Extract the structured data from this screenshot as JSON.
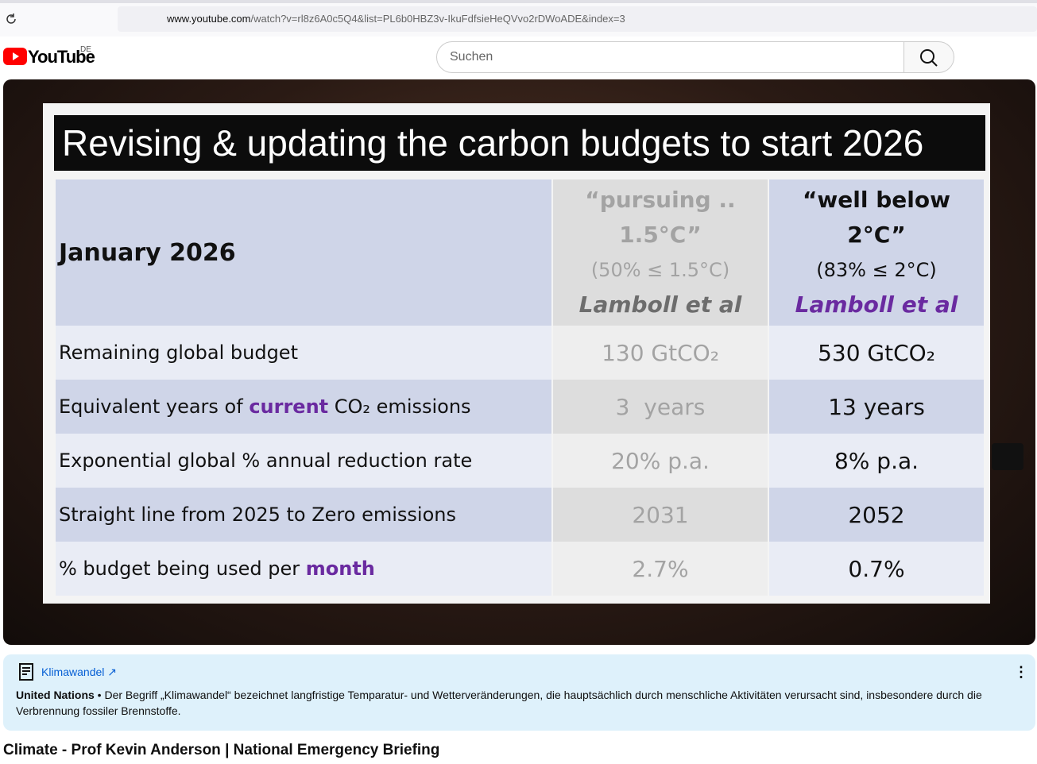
{
  "browser": {
    "url": "www.youtube.com/watch?v=rl8z6A0c5Q4&list=PL6b0HBZ3v-IkuFdfsieHeQVvo2rDWoADE&index=3"
  },
  "header": {
    "logo": "YouTube",
    "region": "DE",
    "search_placeholder": "Suchen"
  },
  "slide": {
    "title": "Revising & updating the carbon budgets to start 2026",
    "table": {
      "header": {
        "label": "January 2026",
        "columns": [
          {
            "lines": [
              "“pursuing ..",
              "1.5°C”",
              "(50% ≤ 1.5°C)",
              "Lamboll et al"
            ]
          },
          {
            "lines": [
              "“well below 2°C”",
              "(83% ≤ 2°C)",
              "Lamboll et al"
            ]
          }
        ]
      },
      "rows": [
        {
          "label": [
            "Remaining global budget"
          ],
          "highlight": [],
          "values": [
            "130 GtCO₂",
            "530 GtCO₂"
          ]
        },
        {
          "label": [
            "Equivalent years of ",
            "current",
            " CO₂ emissions"
          ],
          "highlight": [
            1
          ],
          "values": [
            "3  years",
            "13 years"
          ]
        },
        {
          "label": [
            "Exponential global % annual reduction rate"
          ],
          "highlight": [],
          "values": [
            "20% p.a.",
            "8% p.a."
          ]
        },
        {
          "label": [
            "Straight line from 2025 to Zero emissions"
          ],
          "highlight": [],
          "values": [
            "2031",
            "2052"
          ]
        },
        {
          "label": [
            "% budget being used per ",
            "month"
          ],
          "highlight": [
            1
          ],
          "values": [
            "2.7%",
            "0.7%"
          ]
        }
      ]
    }
  },
  "info_panel": {
    "topic": "Klimawandel",
    "source": "United Nations",
    "text": "Der Begriff „Klimawandel“ bezeichnet langfristige Temparatur- und Wetterveränderungen, die hauptsächlich durch menschliche Aktivitäten verursacht sind, insbesondere durch die Verbrennung fossiler Brennstoffe."
  },
  "video": {
    "title": "Climate - Prof Kevin Anderson | National Emergency Briefing"
  }
}
